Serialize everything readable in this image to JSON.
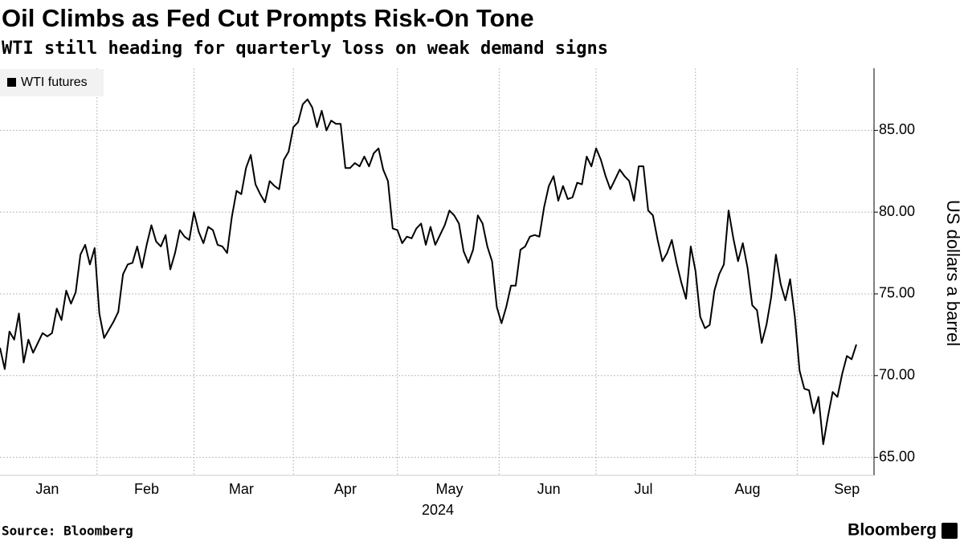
{
  "chart_data": {
    "type": "line",
    "title": "Oil Climbs as Fed Cut Prompts Risk-On Tone",
    "subtitle": "WTI still heading for quarterly loss on weak demand signs",
    "ylabel": "US dollars a barrel",
    "xlabel": "2024",
    "source": "Source: Bloomberg",
    "logo": "Bloomberg",
    "legend": "top-left",
    "grid": true,
    "categories": [
      null,
      null,
      null,
      null,
      null,
      null,
      null,
      null,
      null,
      null,
      "Jan",
      null,
      null,
      null,
      null,
      null,
      null,
      null,
      null,
      null,
      null,
      null,
      null,
      null,
      null,
      null,
      null,
      null,
      null,
      null,
      null,
      "Feb",
      null,
      null,
      null,
      null,
      null,
      null,
      null,
      null,
      null,
      null,
      null,
      null,
      null,
      null,
      null,
      null,
      null,
      null,
      null,
      "Mar",
      null,
      null,
      null,
      null,
      null,
      null,
      null,
      null,
      null,
      null,
      null,
      null,
      null,
      null,
      null,
      null,
      null,
      null,
      null,
      null,
      null,
      "Apr",
      null,
      null,
      null,
      null,
      null,
      null,
      null,
      null,
      null,
      null,
      null,
      null,
      null,
      null,
      null,
      null,
      null,
      null,
      null,
      null,
      null,
      "May",
      null,
      null,
      null,
      null,
      null,
      null,
      null,
      null,
      null,
      null,
      null,
      null,
      null,
      null,
      null,
      null,
      null,
      null,
      null,
      null,
      "Jun",
      null,
      null,
      null,
      null,
      null,
      null,
      null,
      null,
      null,
      null,
      null,
      null,
      null,
      null,
      null,
      null,
      null,
      null,
      null,
      "Jul",
      null,
      null,
      null,
      null,
      null,
      null,
      null,
      null,
      null,
      null,
      null,
      null,
      null,
      null,
      null,
      null,
      null,
      null,
      null,
      null,
      null,
      "Aug",
      null,
      null,
      null,
      null,
      null,
      null,
      null,
      null,
      null,
      null,
      null,
      null,
      null,
      null,
      null,
      null,
      null,
      null,
      null,
      null,
      "Sep",
      null,
      null
    ],
    "series": [
      {
        "name": "WTI futures",
        "color": "#000000",
        "values": [
          71.7,
          70.4,
          72.7,
          72.2,
          73.8,
          70.8,
          72.2,
          71.4,
          72.0,
          72.6,
          72.4,
          72.6,
          74.1,
          73.4,
          75.2,
          74.4,
          75.1,
          77.4,
          78.0,
          76.8,
          77.8,
          73.8,
          72.3,
          72.8,
          73.3,
          73.9,
          76.2,
          76.8,
          76.9,
          77.9,
          76.6,
          78.0,
          79.2,
          78.2,
          77.9,
          78.6,
          76.5,
          77.5,
          78.9,
          78.5,
          78.3,
          80.0,
          78.8,
          78.1,
          79.1,
          78.9,
          78.0,
          77.9,
          77.5,
          79.7,
          81.3,
          81.1,
          82.7,
          83.5,
          81.7,
          81.1,
          80.6,
          81.9,
          81.6,
          81.4,
          83.2,
          83.7,
          85.2,
          85.5,
          86.6,
          86.9,
          86.4,
          85.2,
          86.2,
          85.0,
          85.6,
          85.4,
          85.4,
          82.7,
          82.7,
          83.0,
          82.8,
          83.4,
          82.8,
          83.6,
          83.9,
          82.6,
          81.9,
          79.0,
          78.9,
          78.1,
          78.5,
          78.4,
          79.0,
          79.3,
          78.0,
          79.1,
          78.0,
          78.6,
          79.2,
          80.1,
          79.8,
          79.3,
          77.6,
          76.9,
          77.7,
          79.8,
          79.3,
          77.9,
          77.0,
          74.2,
          73.2,
          74.2,
          75.5,
          75.5,
          77.7,
          77.9,
          78.5,
          78.6,
          78.5,
          80.3,
          81.6,
          82.2,
          80.7,
          81.6,
          80.8,
          80.9,
          81.8,
          81.7,
          83.4,
          82.8,
          83.9,
          83.2,
          82.2,
          81.4,
          82.0,
          82.6,
          82.2,
          81.9,
          80.7,
          82.8,
          82.8,
          80.1,
          79.8,
          78.3,
          77.0,
          77.5,
          78.3,
          76.9,
          75.7,
          74.7,
          77.9,
          76.4,
          73.6,
          72.9,
          73.1,
          75.2,
          76.2,
          76.8,
          80.1,
          78.4,
          77.0,
          78.1,
          76.6,
          74.3,
          74.0,
          72.0,
          73.1,
          74.8,
          77.4,
          75.6,
          74.6,
          75.9,
          73.6,
          70.3,
          69.2,
          69.1,
          67.7,
          68.7,
          65.8,
          67.5,
          69.0,
          68.7,
          70.1,
          71.2,
          71.0,
          71.9
        ]
      }
    ],
    "ylim": [
      63.9,
      88.8
    ],
    "yticks": [
      {
        "value": 65,
        "label": "65.00"
      },
      {
        "value": 70,
        "label": "70.00"
      },
      {
        "value": 75,
        "label": "75.00"
      },
      {
        "value": 80,
        "label": "80.00"
      },
      {
        "value": 85,
        "label": "85.00"
      }
    ]
  }
}
